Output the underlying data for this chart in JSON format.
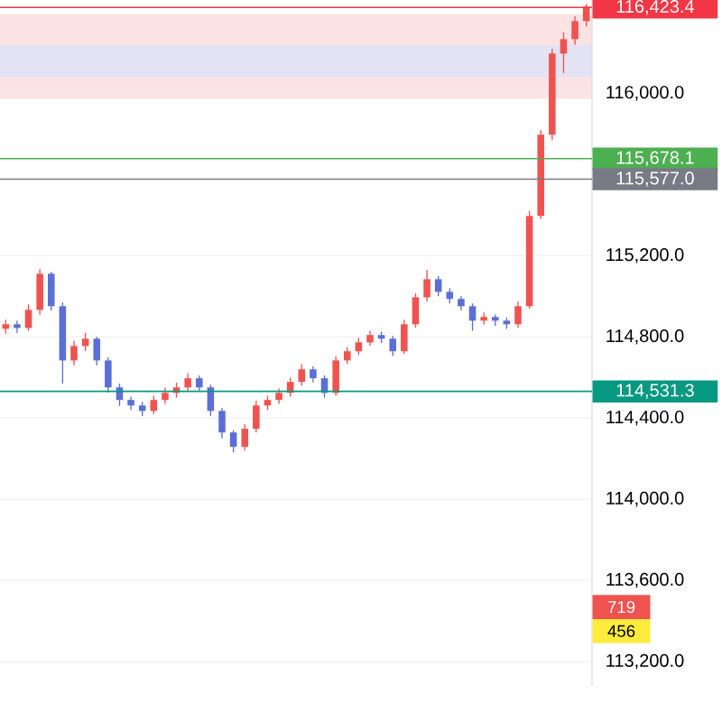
{
  "chart_data": {
    "type": "candlestick",
    "categories": [
      null,
      null,
      null,
      null,
      null,
      null,
      null,
      null,
      null,
      null,
      null,
      null,
      null,
      null,
      null,
      null,
      null,
      null,
      null,
      null,
      null,
      null,
      null,
      null,
      null,
      null,
      null,
      null,
      null,
      null,
      null,
      null,
      null,
      null,
      null,
      null,
      null,
      null,
      null,
      null,
      null,
      null,
      null,
      null,
      null,
      null,
      null,
      null,
      null,
      null,
      null,
      null
    ],
    "ohlc": [
      [
        114840,
        114885,
        114815,
        114862
      ],
      [
        114862,
        114880,
        114820,
        114844
      ],
      [
        114844,
        114960,
        114830,
        114933
      ],
      [
        114933,
        115135,
        114910,
        115111
      ],
      [
        115111,
        115120,
        114930,
        114951
      ],
      [
        114951,
        114970,
        114570,
        114684
      ],
      [
        114684,
        114780,
        114660,
        114755
      ],
      [
        114755,
        114820,
        114730,
        114791
      ],
      [
        114791,
        114800,
        114660,
        114684
      ],
      [
        114684,
        114700,
        114525,
        114551
      ],
      [
        114551,
        114570,
        114460,
        114489
      ],
      [
        114489,
        114505,
        114440,
        114462
      ],
      [
        114462,
        114480,
        114410,
        114435
      ],
      [
        114435,
        114510,
        114420,
        114489
      ],
      [
        114489,
        114550,
        114470,
        114524
      ],
      [
        114524,
        114575,
        114500,
        114551
      ],
      [
        114551,
        114620,
        114530,
        114596
      ],
      [
        114596,
        114610,
        114530,
        114551
      ],
      [
        114551,
        114565,
        114410,
        114435
      ],
      [
        114435,
        114450,
        114300,
        114329
      ],
      [
        114329,
        114340,
        114230,
        114258
      ],
      [
        114258,
        114370,
        114240,
        114347
      ],
      [
        114347,
        114485,
        114330,
        114462
      ],
      [
        114462,
        114510,
        114440,
        114489
      ],
      [
        114489,
        114545,
        114470,
        114524
      ],
      [
        114524,
        114600,
        114505,
        114578
      ],
      [
        114578,
        114665,
        114560,
        114640
      ],
      [
        114640,
        114655,
        114575,
        114596
      ],
      [
        114596,
        114610,
        114500,
        114524
      ],
      [
        114524,
        114705,
        114510,
        114684
      ],
      [
        114684,
        114750,
        114665,
        114729
      ],
      [
        114729,
        114795,
        114710,
        114773
      ],
      [
        114773,
        114830,
        114755,
        114809
      ],
      [
        114809,
        114825,
        114770,
        114791
      ],
      [
        114791,
        114805,
        114705,
        114729
      ],
      [
        114729,
        114885,
        114715,
        114862
      ],
      [
        114862,
        115015,
        114845,
        114995
      ],
      [
        114995,
        115130,
        114975,
        115084
      ],
      [
        115084,
        115100,
        115000,
        115022
      ],
      [
        115022,
        115040,
        114965,
        114987
      ],
      [
        114987,
        115000,
        114930,
        114951
      ],
      [
        114951,
        114965,
        114830,
        114880
      ],
      [
        114880,
        114920,
        114860,
        114898
      ],
      [
        114898,
        114910,
        114855,
        114880
      ],
      [
        114880,
        114895,
        114840,
        114862
      ],
      [
        114862,
        114975,
        114845,
        114951
      ],
      [
        114951,
        115420,
        114940,
        115396
      ],
      [
        115396,
        115820,
        115380,
        115796
      ],
      [
        115796,
        116220,
        115770,
        116196
      ],
      [
        116196,
        116300,
        116100,
        116267
      ],
      [
        116267,
        116380,
        116240,
        116356
      ],
      [
        116356,
        116440,
        116330,
        116427
      ]
    ],
    "ylim": [
      113080,
      116460
    ],
    "yticks": [
      {
        "value": 113200,
        "label": "113,200.0"
      },
      {
        "value": 113600,
        "label": "113,600.0"
      },
      {
        "value": 114000,
        "label": "114,000.0"
      },
      {
        "value": 114400,
        "label": "114,400.0"
      },
      {
        "value": 114800,
        "label": "114,800.0"
      },
      {
        "value": 115200,
        "label": "115,200.0"
      },
      {
        "value": 116000,
        "label": "116,000.0"
      }
    ],
    "tick_labels": "y",
    "grid": "y",
    "bands": [
      {
        "axis": "y",
        "from": 115973,
        "to": 116391,
        "color": "#fbe3e4"
      },
      {
        "axis": "y",
        "from": 116080,
        "to": 116240,
        "color": "#e4e3f3"
      }
    ],
    "ref_lines": [
      {
        "axis": "y",
        "value": 116423.4,
        "label": "116,423.4",
        "color": "#f23645"
      },
      {
        "axis": "y",
        "value": 115678.1,
        "label": "115,678.1",
        "color": "#4caf50"
      },
      {
        "axis": "y",
        "value": 115577.0,
        "label": "115,577.0",
        "color": "#787b86"
      },
      {
        "axis": "y",
        "value": 114531.3,
        "label": "114,531.3",
        "color": "#089981"
      }
    ],
    "annotations": [
      "719",
      "456"
    ]
  }
}
